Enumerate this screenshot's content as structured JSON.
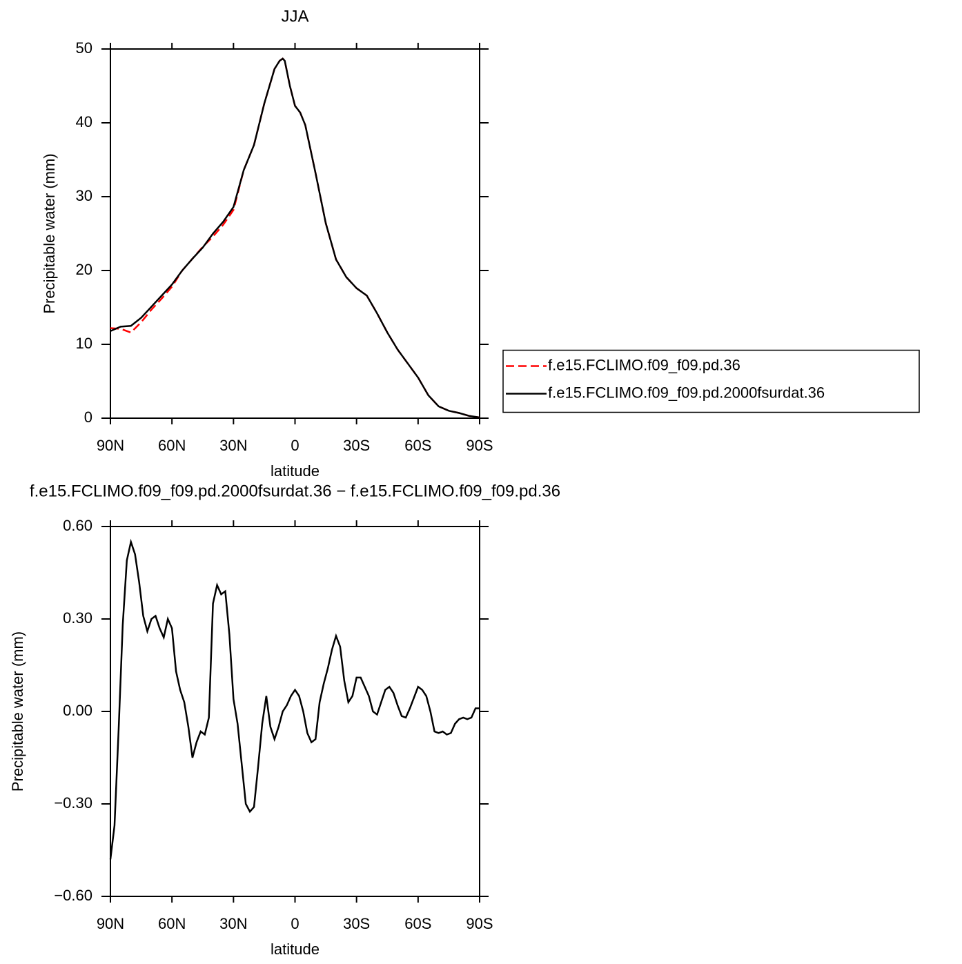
{
  "chart_data": [
    {
      "type": "line",
      "title": "JJA",
      "xlabel": "latitude",
      "ylabel": "Precipitable water (mm)",
      "x": [
        90,
        85,
        80,
        75,
        70,
        65,
        60,
        55,
        50,
        45,
        40,
        35,
        30,
        25,
        20,
        15,
        10,
        7.5,
        6,
        5,
        2.5,
        0,
        -2.5,
        -5,
        -10,
        -15,
        -20,
        -25,
        -30,
        -35,
        -40,
        -45,
        -50,
        -55,
        -60,
        -65,
        -70,
        -75,
        -80,
        -85,
        -90
      ],
      "series": [
        {
          "name": "f.e15.FCLIMO.f09_f09.pd.36",
          "color": "#ff0000",
          "linestyle": "dashed",
          "values": [
            12.2,
            12.1,
            11.6,
            13.0,
            14.7,
            16.2,
            17.8,
            20.0,
            21.6,
            23.2,
            24.6,
            26.2,
            28.2,
            33.6,
            37.0,
            42.6,
            47.3,
            48.4,
            48.7,
            48.4,
            45.0,
            42.3,
            41.4,
            39.7,
            33.2,
            26.4,
            21.5,
            19.1,
            17.6,
            16.6,
            14.2,
            11.6,
            9.3,
            7.4,
            5.5,
            3.1,
            1.6,
            1.0,
            0.7,
            0.3,
            0.1
          ]
        },
        {
          "name": "f.e15.FCLIMO.f09_f09.pd.2000fsurdat.36",
          "color": "#000000",
          "linestyle": "solid",
          "values": [
            11.8,
            12.4,
            12.5,
            13.6,
            15.1,
            16.6,
            18.1,
            20.0,
            21.6,
            23.1,
            25.0,
            26.6,
            28.6,
            33.6,
            37.0,
            42.6,
            47.3,
            48.4,
            48.7,
            48.4,
            45.0,
            42.3,
            41.4,
            39.7,
            33.2,
            26.4,
            21.5,
            19.1,
            17.6,
            16.6,
            14.2,
            11.6,
            9.3,
            7.4,
            5.5,
            3.1,
            1.6,
            1.0,
            0.7,
            0.3,
            0.1
          ]
        }
      ],
      "xlim": [
        90,
        -90
      ],
      "xticks": [
        {
          "value": 90,
          "label": "90N"
        },
        {
          "value": 60,
          "label": "60N"
        },
        {
          "value": 30,
          "label": "30N"
        },
        0,
        {
          "value": -30,
          "label": "30S"
        },
        {
          "value": -60,
          "label": "60S"
        },
        {
          "value": -90,
          "label": "90S"
        }
      ],
      "ylim": [
        0,
        50
      ],
      "yticks": [
        0,
        10,
        20,
        30,
        40,
        50
      ],
      "legend": "right"
    },
    {
      "type": "line",
      "title": "f.e15.FCLIMO.f09_f09.pd.2000fsurdat.36 − f.e15.FCLIMO.f09_f09.pd.36",
      "xlabel": "latitude",
      "ylabel": "Precipitable water (mm)",
      "x": [
        90,
        88,
        86,
        84,
        82,
        80,
        78,
        76,
        74,
        72,
        70,
        68,
        66,
        64,
        62,
        60,
        58,
        56,
        54,
        52,
        50,
        48,
        46,
        44,
        42,
        40,
        38,
        36,
        34,
        32,
        30,
        28,
        26,
        24,
        22,
        20,
        18,
        16,
        14,
        12,
        10,
        8,
        6,
        4,
        2,
        0,
        -2,
        -4,
        -6,
        -8,
        -10,
        -12,
        -14,
        -16,
        -18,
        -20,
        -22,
        -24,
        -26,
        -28,
        -30,
        -32,
        -34,
        -36,
        -38,
        -40,
        -42,
        -44,
        -46,
        -48,
        -50,
        -52,
        -54,
        -56,
        -58,
        -60,
        -62,
        -64,
        -66,
        -68,
        -70,
        -72,
        -74,
        -76,
        -78,
        -80,
        -82,
        -84,
        -86,
        -88,
        -90
      ],
      "values": [
        -0.48,
        -0.37,
        -0.06,
        0.28,
        0.49,
        0.55,
        0.51,
        0.42,
        0.31,
        0.26,
        0.3,
        0.31,
        0.27,
        0.24,
        0.3,
        0.27,
        0.13,
        0.07,
        0.03,
        -0.05,
        -0.15,
        -0.1,
        -0.065,
        -0.075,
        -0.02,
        0.35,
        0.41,
        0.38,
        0.39,
        0.25,
        0.04,
        -0.04,
        -0.17,
        -0.3,
        -0.325,
        -0.31,
        -0.18,
        -0.04,
        0.05,
        -0.05,
        -0.09,
        -0.05,
        0.0,
        0.02,
        0.05,
        0.07,
        0.05,
        0.0,
        -0.07,
        -0.1,
        -0.09,
        0.03,
        0.09,
        0.14,
        0.2,
        0.245,
        0.21,
        0.1,
        0.03,
        0.05,
        0.11,
        0.11,
        0.08,
        0.05,
        0.0,
        -0.01,
        0.03,
        0.07,
        0.08,
        0.06,
        0.02,
        -0.015,
        -0.02,
        0.01,
        0.045,
        0.08,
        0.07,
        0.05,
        0.0,
        -0.065,
        -0.07,
        -0.065,
        -0.075,
        -0.07,
        -0.04,
        -0.025,
        -0.02,
        -0.025,
        -0.02,
        0.01,
        0.01
      ],
      "color": "#000000",
      "linestyle": "solid",
      "xlim": [
        90,
        -90
      ],
      "xticks": [
        {
          "value": 90,
          "label": "90N"
        },
        {
          "value": 60,
          "label": "60N"
        },
        {
          "value": 30,
          "label": "30N"
        },
        0,
        {
          "value": -30,
          "label": "30S"
        },
        {
          "value": -60,
          "label": "60S"
        },
        {
          "value": -90,
          "label": "90S"
        }
      ],
      "ylim": [
        -0.6,
        0.6
      ],
      "yticks": [
        {
          "value": -0.6,
          "label": "−0.60"
        },
        {
          "value": -0.3,
          "label": "−0.30"
        },
        {
          "value": 0,
          "label": "0.00"
        },
        {
          "value": 0.3,
          "label": "0.30"
        },
        {
          "value": 0.6,
          "label": "0.60"
        }
      ]
    }
  ]
}
